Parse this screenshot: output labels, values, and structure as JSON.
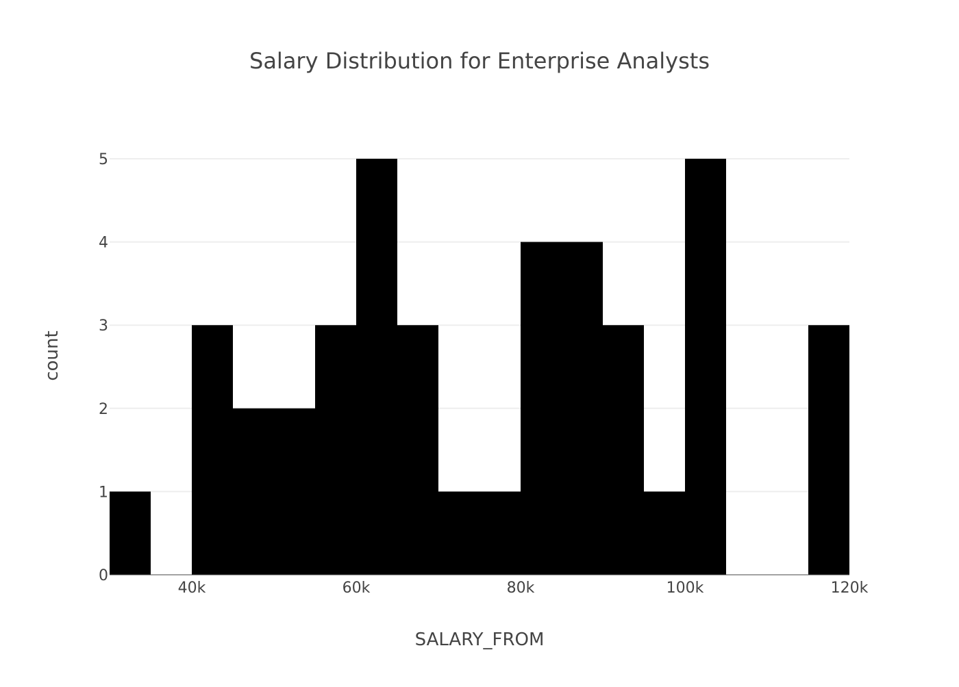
{
  "chart_data": {
    "type": "bar",
    "title": "Salary Distribution for Enterprise Analysts",
    "xlabel": "SALARY_FROM",
    "ylabel": "count",
    "bin_width": 5000,
    "bins": [
      {
        "start": 30000,
        "end": 35000,
        "count": 1
      },
      {
        "start": 35000,
        "end": 40000,
        "count": 0
      },
      {
        "start": 40000,
        "end": 45000,
        "count": 3
      },
      {
        "start": 45000,
        "end": 50000,
        "count": 2
      },
      {
        "start": 50000,
        "end": 55000,
        "count": 2
      },
      {
        "start": 55000,
        "end": 60000,
        "count": 3
      },
      {
        "start": 60000,
        "end": 65000,
        "count": 5
      },
      {
        "start": 65000,
        "end": 70000,
        "count": 3
      },
      {
        "start": 70000,
        "end": 75000,
        "count": 1
      },
      {
        "start": 75000,
        "end": 80000,
        "count": 1
      },
      {
        "start": 80000,
        "end": 85000,
        "count": 4
      },
      {
        "start": 85000,
        "end": 90000,
        "count": 4
      },
      {
        "start": 90000,
        "end": 95000,
        "count": 3
      },
      {
        "start": 95000,
        "end": 100000,
        "count": 1
      },
      {
        "start": 100000,
        "end": 105000,
        "count": 5
      },
      {
        "start": 105000,
        "end": 110000,
        "count": 0
      },
      {
        "start": 110000,
        "end": 115000,
        "count": 0
      },
      {
        "start": 115000,
        "end": 120000,
        "count": 3
      }
    ],
    "xlim": [
      30000,
      120000
    ],
    "ylim": [
      0,
      5
    ],
    "x_ticks": [
      {
        "value": 40000,
        "label": "40k"
      },
      {
        "value": 60000,
        "label": "60k"
      },
      {
        "value": 80000,
        "label": "80k"
      },
      {
        "value": 100000,
        "label": "100k"
      },
      {
        "value": 120000,
        "label": "120k"
      }
    ],
    "y_ticks": [
      {
        "value": 0,
        "label": "0"
      },
      {
        "value": 1,
        "label": "1"
      },
      {
        "value": 2,
        "label": "2"
      },
      {
        "value": 3,
        "label": "3"
      },
      {
        "value": 4,
        "label": "4"
      },
      {
        "value": 5,
        "label": "5"
      }
    ],
    "grid": true,
    "legend": "none",
    "bar_color": "#000000"
  }
}
